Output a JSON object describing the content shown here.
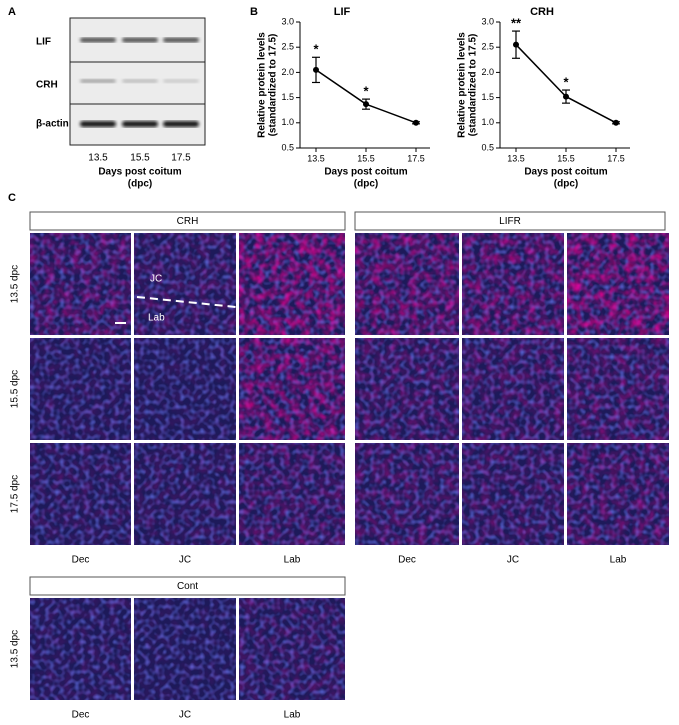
{
  "panel_labels": [
    "A",
    "B",
    "C"
  ],
  "blot": {
    "rows": [
      "LIF",
      "CRH",
      "β-actin"
    ],
    "lanes": [
      "13.5",
      "15.5",
      "17.5"
    ],
    "xlabel": [
      "Days post coitum",
      "(dpc)"
    ]
  },
  "chart_data": [
    {
      "type": "line",
      "title": "LIF",
      "x": [
        13.5,
        15.5,
        17.5
      ],
      "values": [
        2.05,
        1.37,
        1.0
      ],
      "errors": [
        0.25,
        0.1,
        0.02
      ],
      "annotations": [
        "*",
        "*",
        null
      ],
      "color": "#000000",
      "xlim": [
        12.86,
        18.06
      ],
      "xticks": [
        13.5,
        15.5,
        17.5
      ],
      "ylim": [
        0.5,
        3.0
      ],
      "yticks": [
        0.5,
        {
          "value": 1,
          "label": "1.0"
        },
        1.5,
        {
          "value": 2,
          "label": "2.0"
        },
        2.5,
        {
          "value": 3,
          "label": "3.0"
        }
      ],
      "ylabel": [
        "Relative protein levels",
        "(standardized to 17.5)"
      ],
      "xlabel": [
        "Days post coitum",
        "(dpc)"
      ]
    },
    {
      "type": "line",
      "title": "CRH",
      "x": [
        13.5,
        15.5,
        17.5
      ],
      "values": [
        2.55,
        1.52,
        1.0
      ],
      "errors": [
        0.27,
        0.13,
        0.02
      ],
      "annotations": [
        "**",
        "*",
        null
      ],
      "color": "#000000",
      "xlim": [
        12.86,
        18.06
      ],
      "xticks": [
        13.5,
        15.5,
        17.5
      ],
      "ylim": [
        0.5,
        3.0
      ],
      "yticks": [
        0.5,
        {
          "value": 1,
          "label": "1.0"
        },
        1.5,
        {
          "value": 2,
          "label": "2.0"
        },
        2.5,
        {
          "value": 3,
          "label": "3.0"
        }
      ],
      "ylabel": [
        "Relative protein levels",
        "(standardized to 17.5)"
      ],
      "xlabel": [
        "Days post coitum",
        "(dpc)"
      ]
    }
  ],
  "micrographs": {
    "groups": [
      {
        "title": "CRH",
        "rows": [
          "13.5 dpc",
          "15.5 dpc",
          "17.5 dpc"
        ],
        "columns": [
          "Dec",
          "JC",
          "Lab"
        ]
      },
      {
        "title": "LIFR",
        "rows": [
          "13.5 dpc",
          "15.5 dpc",
          "17.5 dpc"
        ],
        "columns": [
          "Dec",
          "JC",
          "Lab"
        ]
      },
      {
        "title": "Cont",
        "rows": [
          "13.5 dpc"
        ],
        "columns": [
          "Dec",
          "JC",
          "Lab"
        ]
      }
    ],
    "region_labels": [
      "JC",
      "Lab"
    ]
  }
}
